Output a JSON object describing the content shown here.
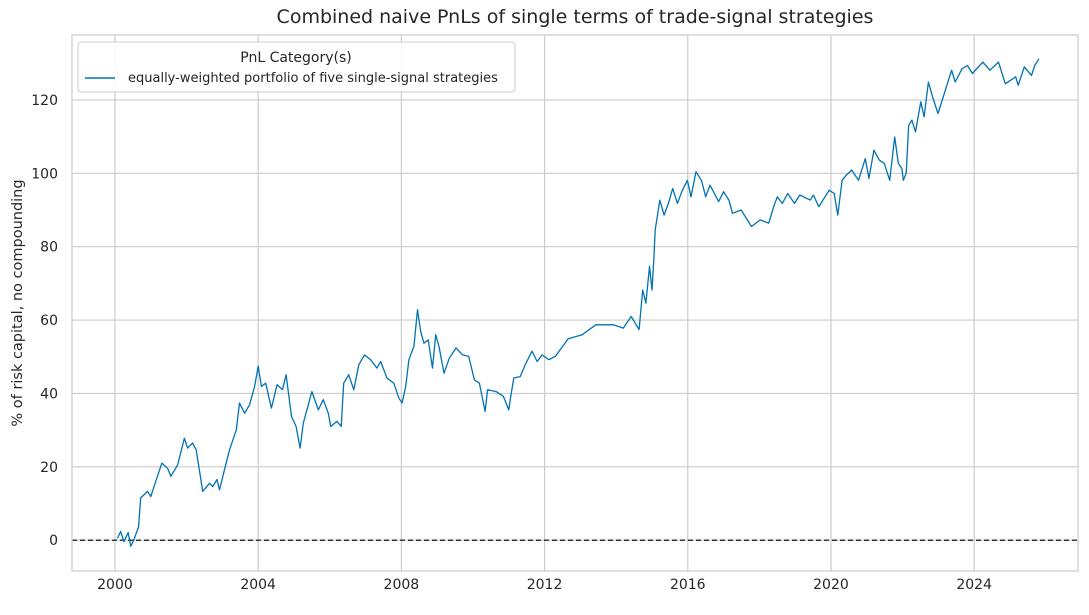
{
  "chart_data": {
    "type": "line",
    "title": "Combined naive PnLs of single terms of trade-signal strategies",
    "xlabel": "",
    "ylabel": "% of risk capital, no compounding",
    "xlim": [
      1998.8,
      2026.9
    ],
    "ylim": [
      -8.4,
      137.7
    ],
    "xticks": [
      2000,
      2004,
      2008,
      2012,
      2016,
      2020,
      2024
    ],
    "yticks": [
      0,
      20,
      40,
      60,
      80,
      100,
      120
    ],
    "grid": true,
    "legend": {
      "title": "PnL Category(s)",
      "placement": "top-left"
    },
    "reference_line": {
      "y": 0,
      "style": "dashed",
      "color": "#000000"
    },
    "series": [
      {
        "name": "equally-weighted portfolio of five single-signal strategies",
        "color": "#0173b2",
        "x": [
          2000.07,
          2000.16,
          2000.25,
          2000.37,
          2000.44,
          2000.53,
          2000.66,
          2000.72,
          2000.91,
          2001.0,
          2001.12,
          2001.31,
          2001.47,
          2001.56,
          2001.75,
          2001.94,
          2002.03,
          2002.17,
          2002.27,
          2002.45,
          2002.64,
          2002.73,
          2002.85,
          2002.92,
          2003.06,
          2003.2,
          2003.39,
          2003.48,
          2003.62,
          2003.76,
          2003.9,
          2004.0,
          2004.09,
          2004.21,
          2004.37,
          2004.53,
          2004.68,
          2004.78,
          2004.93,
          2005.06,
          2005.17,
          2005.26,
          2005.5,
          2005.68,
          2005.82,
          2005.96,
          2006.03,
          2006.2,
          2006.32,
          2006.39,
          2006.53,
          2006.67,
          2006.81,
          2006.97,
          2007.14,
          2007.32,
          2007.42,
          2007.6,
          2007.79,
          2007.93,
          2008.02,
          2008.12,
          2008.21,
          2008.35,
          2008.45,
          2008.54,
          2008.63,
          2008.75,
          2008.87,
          2008.96,
          2009.05,
          2009.19,
          2009.34,
          2009.53,
          2009.71,
          2009.88,
          2010.04,
          2010.18,
          2010.34,
          2010.41,
          2010.65,
          2010.85,
          2011.0,
          2011.04,
          2011.14,
          2011.32,
          2011.46,
          2011.65,
          2011.79,
          2011.93,
          2012.12,
          2012.3,
          2012.66,
          2013.05,
          2013.43,
          2013.92,
          2014.2,
          2014.42,
          2014.64,
          2014.74,
          2014.83,
          2014.93,
          2015.0,
          2015.05,
          2015.09,
          2015.15,
          2015.22,
          2015.34,
          2015.46,
          2015.58,
          2015.71,
          2015.85,
          2015.99,
          2016.09,
          2016.23,
          2016.38,
          2016.5,
          2016.62,
          2016.86,
          2017.0,
          2017.15,
          2017.25,
          2017.49,
          2017.78,
          2018.02,
          2018.26,
          2018.4,
          2018.5,
          2018.64,
          2018.79,
          2018.98,
          2019.13,
          2019.42,
          2019.51,
          2019.66,
          2019.95,
          2020.09,
          2020.19,
          2020.31,
          2020.43,
          2020.58,
          2020.77,
          2020.96,
          2021.06,
          2021.2,
          2021.35,
          2021.49,
          2021.64,
          2021.78,
          2021.88,
          2021.98,
          2022.02,
          2022.1,
          2022.17,
          2022.26,
          2022.36,
          2022.51,
          2022.6,
          2022.72,
          2022.84,
          2022.99,
          2023.18,
          2023.37,
          2023.47,
          2023.66,
          2023.81,
          2023.95,
          2024.24,
          2024.44,
          2024.68,
          2024.87,
          2025.16,
          2025.23,
          2025.4,
          2025.6,
          2025.69,
          2025.81
        ],
        "y": [
          0.5,
          2.4,
          -0.4,
          2.1,
          -1.7,
          0.1,
          3.7,
          11.5,
          13.3,
          11.9,
          15.5,
          21,
          19.6,
          17.4,
          20.5,
          27.8,
          25.1,
          26.5,
          24.6,
          13.3,
          15.5,
          14.6,
          16.5,
          13.7,
          19.2,
          24.6,
          30.1,
          37.4,
          34.6,
          36.9,
          41.9,
          47.4,
          41.9,
          42.8,
          36,
          42.4,
          41,
          45.1,
          33.7,
          31,
          25.1,
          31.9,
          40.5,
          35.5,
          38.3,
          34.6,
          31,
          32.4,
          31,
          42.8,
          45.1,
          41,
          47.8,
          50.5,
          49.2,
          46.9,
          48.7,
          44.2,
          42.8,
          38.7,
          37.4,
          41.9,
          49.2,
          52.8,
          62.8,
          56.9,
          53.7,
          54.6,
          46.9,
          56,
          52.8,
          45.5,
          49.6,
          52.4,
          50.5,
          50.1,
          43.7,
          42.8,
          35.1,
          41,
          40.5,
          39.2,
          35.5,
          38.3,
          44.2,
          44.6,
          47.8,
          51.5,
          48.7,
          50.5,
          49.2,
          50.1,
          54.9,
          56,
          58.7,
          58.7,
          57.8,
          61,
          57.4,
          68.2,
          64.6,
          74.6,
          68.2,
          76.4,
          84.6,
          88.2,
          92.7,
          88.6,
          91.8,
          95.9,
          91.8,
          95.4,
          98.1,
          93.6,
          100.4,
          98.1,
          93.6,
          96.8,
          92.3,
          95,
          92.7,
          89.1,
          90,
          85.5,
          87.3,
          86.4,
          90.9,
          93.6,
          91.8,
          94.5,
          91.8,
          94.1,
          92.7,
          94.1,
          90.9,
          95.4,
          94.5,
          88.6,
          98.1,
          99.5,
          100.9,
          98.1,
          104,
          98.6,
          106.3,
          103.6,
          102.7,
          98.1,
          109.9,
          102.7,
          101.3,
          98.1,
          100,
          113.1,
          114.5,
          111.3,
          119.5,
          115.4,
          124.9,
          120.8,
          116.3,
          122.2,
          128.1,
          124.9,
          128.5,
          129.4,
          127.2,
          130.3,
          128.1,
          130.3,
          124.4,
          126.3,
          124,
          129,
          126.7,
          129.4,
          131.2
        ]
      }
    ]
  }
}
